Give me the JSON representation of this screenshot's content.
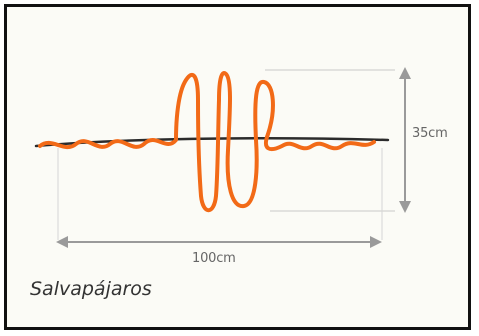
{
  "diagram": {
    "height_label": "35cm",
    "width_label": "100cm",
    "caption": "Salvapájaros",
    "colors": {
      "wire": "#2b2b2b",
      "spiral": "#f26a17",
      "dimension": "#9a9a9a",
      "guide": "#c8c8c8",
      "border": "#111111"
    }
  }
}
